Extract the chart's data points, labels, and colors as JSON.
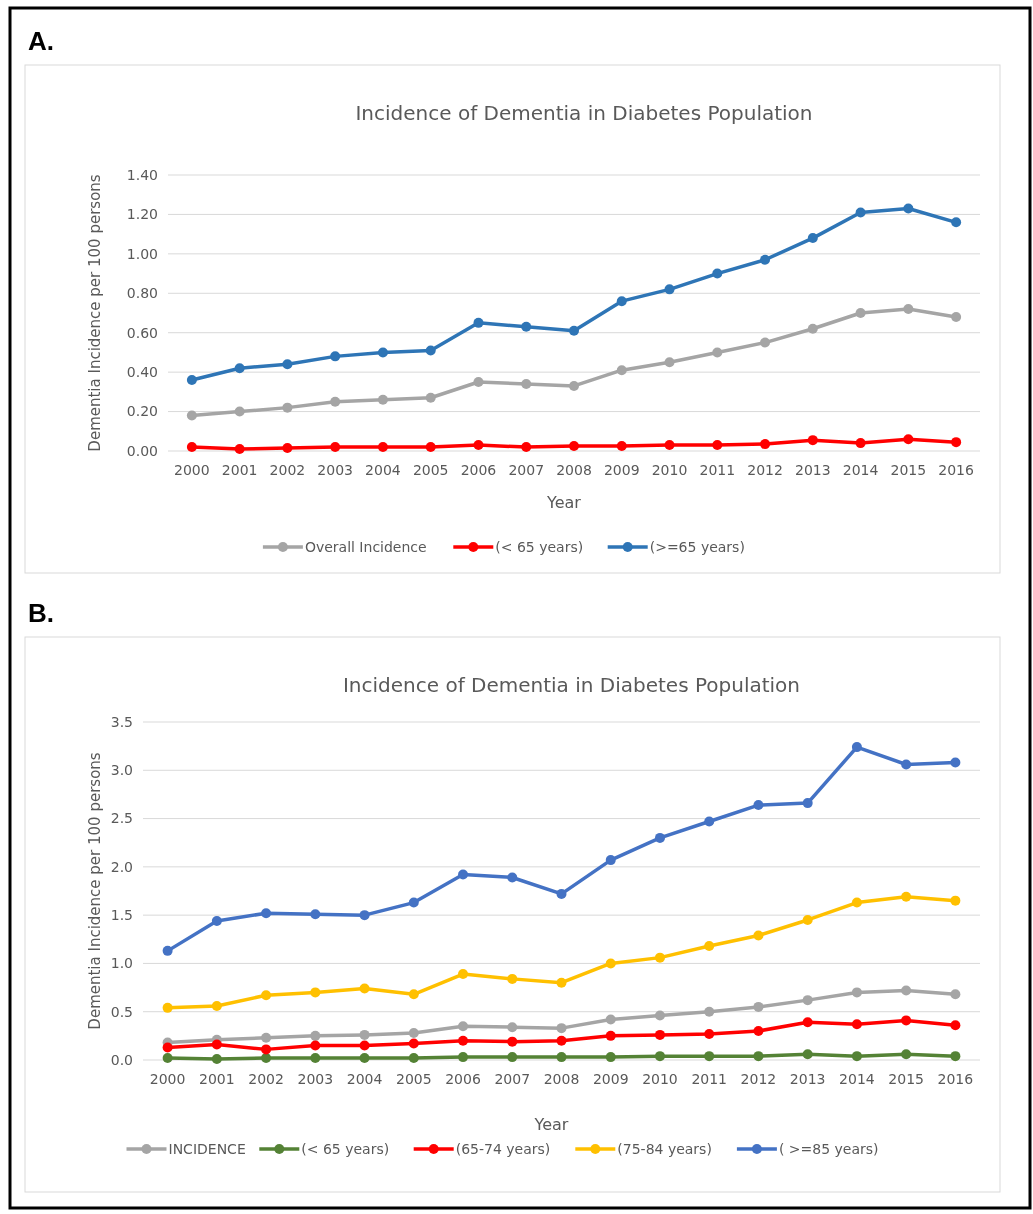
{
  "chart_data": [
    {
      "type": "line",
      "title": "Incidence of Dementia in Diabetes Population",
      "xlabel": "Year",
      "ylabel": "Dementia Incidence per 100 persons",
      "annotations": [
        "A."
      ],
      "categories": [
        "2000",
        "2001",
        "2002",
        "2003",
        "2004",
        "2005",
        "2006",
        "2007",
        "2008",
        "2009",
        "2010",
        "2011",
        "2012",
        "2013",
        "2014",
        "2015",
        "2016"
      ],
      "series": [
        {
          "name": "Overall Incidence",
          "color": "#a5a5a5",
          "values": [
            0.18,
            0.2,
            0.22,
            0.25,
            0.26,
            0.27,
            0.35,
            0.34,
            0.33,
            0.41,
            0.45,
            0.5,
            0.55,
            0.62,
            0.7,
            0.72,
            0.68
          ]
        },
        {
          "name": "(< 65 years)",
          "color": "#ff0000",
          "values": [
            0.02,
            0.01,
            0.015,
            0.02,
            0.02,
            0.02,
            0.03,
            0.02,
            0.025,
            0.025,
            0.03,
            0.03,
            0.035,
            0.055,
            0.04,
            0.06,
            0.045
          ]
        },
        {
          "name": "(>=65 years)",
          "color": "#2e75b6",
          "values": [
            0.36,
            0.42,
            0.44,
            0.48,
            0.5,
            0.51,
            0.65,
            0.63,
            0.61,
            0.76,
            0.82,
            0.9,
            0.97,
            1.08,
            1.21,
            1.23,
            1.16
          ]
        }
      ],
      "ylim": [
        0,
        1.4
      ],
      "yticks": [
        {
          "value": 0,
          "label": "0.00"
        },
        {
          "value": 0.2,
          "label": "0.20"
        },
        {
          "value": 0.4,
          "label": "0.40"
        },
        {
          "value": 0.6,
          "label": "0.60"
        },
        {
          "value": 0.8,
          "label": "0.80"
        },
        {
          "value": 1,
          "label": "1.00"
        },
        {
          "value": 1.2,
          "label": "1.20"
        },
        {
          "value": 1.4,
          "label": "1.40"
        }
      ],
      "grid": "y",
      "legend": "bottom",
      "marker": "circle",
      "line_style": "solid"
    },
    {
      "type": "line",
      "title": "Incidence of Dementia in Diabetes Population",
      "xlabel": "Year",
      "ylabel": "Dementia Incidence per 100 persons",
      "annotations": [
        "B."
      ],
      "categories": [
        "2000",
        "2001",
        "2002",
        "2003",
        "2004",
        "2005",
        "2006",
        "2007",
        "2008",
        "2009",
        "2010",
        "2011",
        "2012",
        "2013",
        "2014",
        "2015",
        "2016"
      ],
      "series": [
        {
          "name": "INCIDENCE",
          "color": "#a5a5a5",
          "values": [
            0.18,
            0.21,
            0.23,
            0.25,
            0.26,
            0.28,
            0.35,
            0.34,
            0.33,
            0.42,
            0.46,
            0.5,
            0.55,
            0.62,
            0.7,
            0.72,
            0.68
          ]
        },
        {
          "name": "(< 65 years)",
          "color": "#548235",
          "values": [
            0.02,
            0.01,
            0.02,
            0.02,
            0.02,
            0.02,
            0.03,
            0.03,
            0.03,
            0.03,
            0.04,
            0.04,
            0.04,
            0.06,
            0.04,
            0.06,
            0.04
          ]
        },
        {
          "name": "(65-74 years)",
          "color": "#ff0000",
          "values": [
            0.13,
            0.16,
            0.11,
            0.15,
            0.15,
            0.17,
            0.2,
            0.19,
            0.2,
            0.25,
            0.26,
            0.27,
            0.3,
            0.39,
            0.37,
            0.41,
            0.36
          ]
        },
        {
          "name": "(75-84 years)",
          "color": "#ffc000",
          "values": [
            0.54,
            0.56,
            0.67,
            0.7,
            0.74,
            0.68,
            0.89,
            0.84,
            0.8,
            1.0,
            1.06,
            1.18,
            1.29,
            1.45,
            1.63,
            1.69,
            1.65
          ]
        },
        {
          "name": "( >=85 years)",
          "color": "#4472c4",
          "values": [
            1.13,
            1.44,
            1.52,
            1.51,
            1.5,
            1.63,
            1.92,
            1.89,
            1.72,
            2.07,
            2.3,
            2.47,
            2.64,
            2.66,
            3.24,
            3.06,
            3.08
          ]
        }
      ],
      "ylim": [
        0,
        3.5
      ],
      "yticks": [
        {
          "value": 0,
          "label": "0.0"
        },
        {
          "value": 0.5,
          "label": "0.5"
        },
        {
          "value": 1,
          "label": "1.0"
        },
        {
          "value": 1.5,
          "label": "1.5"
        },
        {
          "value": 2,
          "label": "2.0"
        },
        {
          "value": 2.5,
          "label": "2.5"
        },
        {
          "value": 3,
          "label": "3.0"
        },
        {
          "value": 3.5,
          "label": "3.5"
        }
      ],
      "grid": "y",
      "legend": "bottom",
      "marker": "circle",
      "line_style": "solid"
    }
  ]
}
